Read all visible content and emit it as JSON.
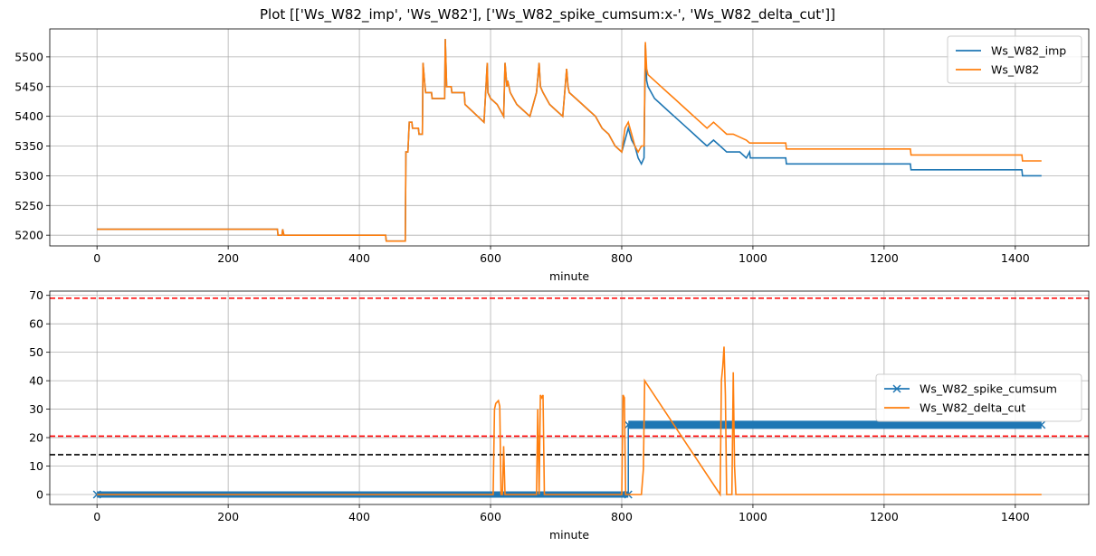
{
  "figure": {
    "title": "Plot [['Ws_W82_imp', 'Ws_W82'], ['Ws_W82_spike_cumsum:x-', 'Ws_W82_delta_cut']]"
  },
  "colors": {
    "blue": "#1f77b4",
    "orange": "#ff7f0e",
    "red": "#ff0000",
    "black": "#000000",
    "grid": "#b0b0b0"
  },
  "chart_data": [
    {
      "type": "line",
      "xlabel": "minute",
      "ylabel": "",
      "xlim": [
        -72,
        1512
      ],
      "ylim": [
        5182,
        5547
      ],
      "xticks": [
        0,
        200,
        400,
        600,
        800,
        1000,
        1200,
        1400
      ],
      "yticks": [
        5200,
        5250,
        5300,
        5350,
        5400,
        5450,
        5500
      ],
      "grid": true,
      "legend_position": "top-right",
      "series": [
        {
          "name": "Ws_W82_imp",
          "color": "#1f77b4",
          "style": "line",
          "x": [
            0,
            275,
            276,
            282,
            283,
            285,
            440,
            441,
            470,
            471,
            474,
            476,
            480,
            481,
            490,
            491,
            496,
            497,
            500,
            501,
            510,
            511,
            530,
            531,
            533,
            540,
            541,
            560,
            561,
            590,
            595,
            596,
            600,
            610,
            620,
            622,
            625,
            626,
            630,
            640,
            650,
            660,
            670,
            674,
            676,
            680,
            690,
            700,
            710,
            716,
            718,
            720,
            730,
            740,
            750,
            760,
            770,
            780,
            790,
            800,
            805,
            810,
            815,
            820,
            825,
            830,
            834,
            836,
            838,
            840,
            850,
            860,
            870,
            880,
            890,
            900,
            910,
            920,
            930,
            940,
            950,
            960,
            970,
            980,
            990,
            995,
            996,
            1050,
            1051,
            1240,
            1241,
            1410,
            1411,
            1440
          ],
          "y": [
            5210,
            5210,
            5200,
            5200,
            5210,
            5200,
            5200,
            5190,
            5190,
            5340,
            5340,
            5390,
            5390,
            5380,
            5380,
            5370,
            5370,
            5490,
            5450,
            5440,
            5440,
            5430,
            5430,
            5530,
            5450,
            5450,
            5440,
            5440,
            5420,
            5390,
            5490,
            5440,
            5430,
            5420,
            5400,
            5490,
            5450,
            5460,
            5440,
            5420,
            5410,
            5400,
            5440,
            5490,
            5450,
            5440,
            5420,
            5410,
            5400,
            5480,
            5450,
            5440,
            5430,
            5420,
            5410,
            5400,
            5380,
            5370,
            5350,
            5340,
            5360,
            5380,
            5360,
            5350,
            5330,
            5320,
            5330,
            5520,
            5460,
            5450,
            5430,
            5420,
            5410,
            5400,
            5390,
            5380,
            5370,
            5360,
            5350,
            5360,
            5350,
            5340,
            5340,
            5340,
            5330,
            5340,
            5330,
            5330,
            5320,
            5320,
            5310,
            5310,
            5300,
            5300
          ]
        },
        {
          "name": "Ws_W82",
          "color": "#ff7f0e",
          "style": "line",
          "x": [
            0,
            275,
            276,
            282,
            283,
            285,
            440,
            441,
            470,
            471,
            474,
            476,
            480,
            481,
            490,
            491,
            496,
            497,
            500,
            501,
            510,
            511,
            530,
            531,
            533,
            540,
            541,
            560,
            561,
            590,
            595,
            596,
            600,
            610,
            620,
            622,
            625,
            626,
            630,
            640,
            650,
            660,
            670,
            674,
            676,
            680,
            690,
            700,
            710,
            716,
            718,
            720,
            730,
            740,
            750,
            760,
            770,
            780,
            790,
            800,
            805,
            810,
            815,
            820,
            825,
            830,
            834,
            836,
            838,
            840,
            850,
            860,
            870,
            880,
            890,
            900,
            910,
            920,
            930,
            940,
            950,
            960,
            970,
            980,
            990,
            995,
            996,
            1050,
            1051,
            1240,
            1241,
            1410,
            1411,
            1440
          ],
          "y": [
            5210,
            5210,
            5200,
            5200,
            5210,
            5200,
            5200,
            5190,
            5190,
            5340,
            5340,
            5390,
            5390,
            5380,
            5380,
            5370,
            5370,
            5490,
            5450,
            5440,
            5440,
            5430,
            5430,
            5530,
            5450,
            5450,
            5440,
            5440,
            5420,
            5390,
            5490,
            5440,
            5430,
            5420,
            5400,
            5490,
            5450,
            5460,
            5440,
            5420,
            5410,
            5400,
            5440,
            5490,
            5450,
            5440,
            5420,
            5410,
            5400,
            5480,
            5450,
            5440,
            5430,
            5420,
            5410,
            5400,
            5380,
            5370,
            5350,
            5340,
            5380,
            5390,
            5370,
            5350,
            5340,
            5350,
            5350,
            5525,
            5480,
            5470,
            5460,
            5450,
            5440,
            5430,
            5420,
            5410,
            5400,
            5390,
            5380,
            5390,
            5380,
            5370,
            5370,
            5365,
            5360,
            5355,
            5355,
            5355,
            5345,
            5345,
            5335,
            5335,
            5325,
            5325
          ]
        }
      ],
      "legend": [
        "Ws_W82_imp",
        "Ws_W82"
      ]
    },
    {
      "type": "line",
      "xlabel": "minute",
      "ylabel": "",
      "xlim": [
        -72,
        1512
      ],
      "ylim": [
        -3.5,
        71.5
      ],
      "xticks": [
        0,
        200,
        400,
        600,
        800,
        1000,
        1200,
        1400
      ],
      "yticks": [
        0,
        10,
        20,
        30,
        40,
        50,
        60,
        70
      ],
      "grid": true,
      "legend_position": "center-right",
      "hlines": [
        {
          "y": 69,
          "color": "#ff0000",
          "style": "dashed"
        },
        {
          "y": 20.5,
          "color": "#ff0000",
          "style": "dashed"
        },
        {
          "y": 14,
          "color": "#000000",
          "style": "dashed"
        }
      ],
      "series": [
        {
          "name": "Ws_W82_spike_cumsum",
          "color": "#1f77b4",
          "style": "x-",
          "x_start": 0,
          "x_end": 810,
          "value": 0,
          "x_start2": 810,
          "x_end2": 1440,
          "value2": 24.5
        },
        {
          "name": "Ws_W82_delta_cut",
          "color": "#ff7f0e",
          "style": "line",
          "x": [
            0,
            604,
            606,
            608,
            612,
            614,
            616,
            618,
            620,
            622,
            623,
            624,
            670,
            672,
            674,
            676,
            678,
            680,
            682,
            684,
            686,
            800,
            802,
            804,
            806,
            808,
            810,
            830,
            833,
            835,
            950,
            952,
            954,
            956,
            958,
            960,
            962,
            968,
            970,
            972,
            974,
            1440
          ],
          "y": [
            0,
            0,
            30,
            32,
            33,
            31,
            0,
            0,
            17,
            0,
            0,
            0,
            0,
            30,
            0,
            35,
            34,
            35,
            0,
            0,
            0,
            0,
            35,
            34,
            0,
            0,
            0,
            0,
            9,
            40,
            0,
            40,
            45,
            52,
            35,
            0,
            0,
            0,
            43,
            10,
            0,
            0
          ]
        }
      ],
      "legend": [
        "Ws_W82_spike_cumsum",
        "Ws_W82_delta_cut"
      ]
    }
  ]
}
